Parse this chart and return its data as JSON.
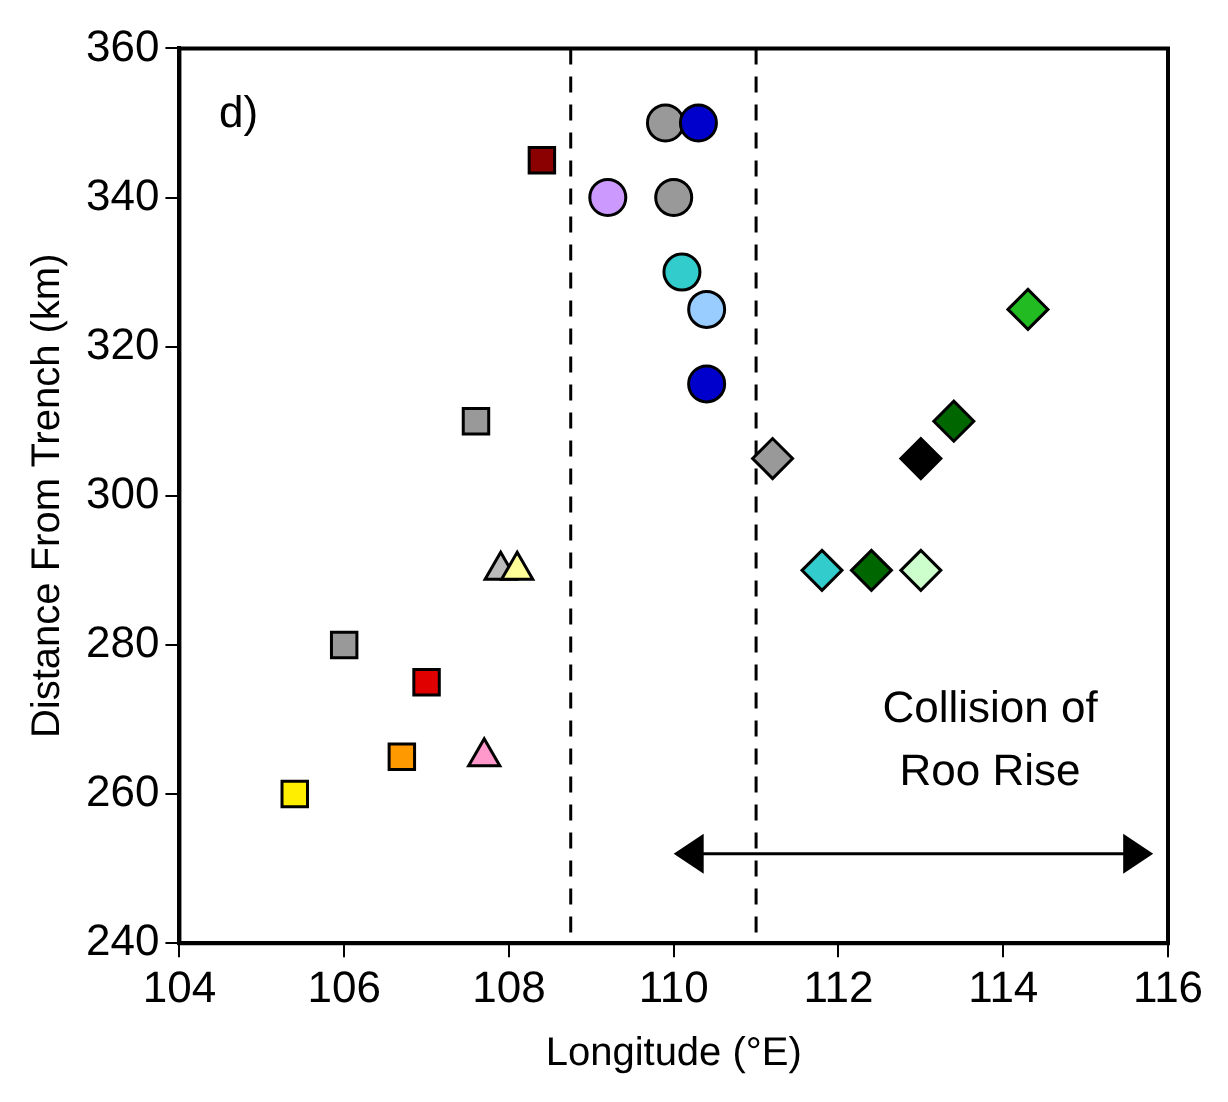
{
  "chart_data": {
    "type": "scatter",
    "title": "d)",
    "xlabel": "Longitude (°E)",
    "ylabel": "Distance From Trench (km)",
    "xlim": [
      104,
      116
    ],
    "xticks": [
      104,
      106,
      108,
      110,
      112,
      114,
      116
    ],
    "ylim": [
      240,
      360
    ],
    "yticks": [
      240,
      260,
      280,
      300,
      320,
      340,
      360
    ],
    "grid": false,
    "legend": false,
    "series": [
      {
        "marker": "square",
        "x": [
          108.4,
          107.6,
          106,
          107,
          106.7,
          105.4
        ],
        "values": [
          345,
          310,
          280,
          275,
          265,
          260
        ],
        "colors": [
          "#8b0000",
          "#999999",
          "#999999",
          "#e00000",
          "#ff9900",
          "#ffee00"
        ]
      },
      {
        "marker": "circle",
        "x": [
          109.9,
          110.3,
          109.2,
          110,
          110.1,
          110.4,
          110.4
        ],
        "values": [
          350,
          350,
          340,
          340,
          330,
          325,
          315
        ],
        "colors": [
          "#999999",
          "#0000cc",
          "#cc99ff",
          "#999999",
          "#33cccc",
          "#99ccff",
          "#0000cc"
        ]
      },
      {
        "marker": "triangle",
        "x": [
          107.9,
          108.1,
          107.7
        ],
        "values": [
          290,
          290,
          265
        ],
        "colors": [
          "#bbbbbb",
          "#ffff99",
          "#ff99cc"
        ]
      },
      {
        "marker": "diamond",
        "x": [
          111.2,
          114.3,
          113.4,
          113,
          111.8,
          112.4,
          113
        ],
        "values": [
          305,
          325,
          310,
          305,
          290,
          290,
          290
        ],
        "colors": [
          "#999999",
          "#22bb22",
          "#006600",
          "#000000",
          "#33cccc",
          "#006600",
          "#ccffcc"
        ]
      }
    ],
    "ref_lines": [
      {
        "axis": "x",
        "value": 108.75,
        "color": "#000000",
        "line_style": "dashed"
      },
      {
        "axis": "x",
        "value": 111,
        "color": "#000000",
        "line_style": "dashed"
      }
    ],
    "annotations": [
      "Collision of Roo Rise"
    ]
  }
}
